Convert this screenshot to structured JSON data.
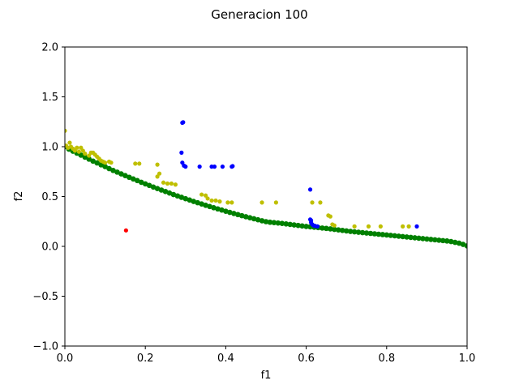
{
  "chart_data": {
    "type": "scatter",
    "title": "Generacion 100",
    "xlabel": "f1",
    "ylabel": "f2",
    "xlim": [
      0.0,
      1.0
    ],
    "ylim": [
      -1.0,
      2.0
    ],
    "xticks": [
      "0.0",
      "0.2",
      "0.4",
      "0.6",
      "0.8",
      "1.0"
    ],
    "yticks": [
      "−1.0",
      "−0.5",
      "0.0",
      "0.5",
      "1.0",
      "1.5",
      "2.0"
    ],
    "grid": false,
    "series": [
      {
        "color": "#008000",
        "points": [
          [
            0.0,
            1.0
          ],
          [
            0.01,
            0.975
          ],
          [
            0.02,
            0.955
          ],
          [
            0.03,
            0.935
          ],
          [
            0.04,
            0.915
          ],
          [
            0.05,
            0.895
          ],
          [
            0.06,
            0.875
          ],
          [
            0.07,
            0.855
          ],
          [
            0.08,
            0.837
          ],
          [
            0.09,
            0.818
          ],
          [
            0.1,
            0.8
          ],
          [
            0.11,
            0.78
          ],
          [
            0.12,
            0.762
          ],
          [
            0.13,
            0.745
          ],
          [
            0.14,
            0.727
          ],
          [
            0.15,
            0.71
          ],
          [
            0.16,
            0.693
          ],
          [
            0.17,
            0.676
          ],
          [
            0.18,
            0.66
          ],
          [
            0.19,
            0.643
          ],
          [
            0.2,
            0.627
          ],
          [
            0.21,
            0.611
          ],
          [
            0.22,
            0.595
          ],
          [
            0.23,
            0.58
          ],
          [
            0.24,
            0.565
          ],
          [
            0.25,
            0.55
          ],
          [
            0.26,
            0.535
          ],
          [
            0.27,
            0.52
          ],
          [
            0.28,
            0.506
          ],
          [
            0.29,
            0.492
          ],
          [
            0.3,
            0.478
          ],
          [
            0.31,
            0.465
          ],
          [
            0.32,
            0.451
          ],
          [
            0.33,
            0.438
          ],
          [
            0.34,
            0.425
          ],
          [
            0.35,
            0.412
          ],
          [
            0.36,
            0.4
          ],
          [
            0.37,
            0.388
          ],
          [
            0.38,
            0.376
          ],
          [
            0.39,
            0.364
          ],
          [
            0.4,
            0.352
          ],
          [
            0.41,
            0.341
          ],
          [
            0.42,
            0.33
          ],
          [
            0.43,
            0.319
          ],
          [
            0.44,
            0.308
          ],
          [
            0.45,
            0.297
          ],
          [
            0.46,
            0.287
          ],
          [
            0.47,
            0.277
          ],
          [
            0.48,
            0.267
          ],
          [
            0.49,
            0.257
          ],
          [
            0.5,
            0.248
          ],
          [
            0.51,
            0.242
          ],
          [
            0.52,
            0.238
          ],
          [
            0.53,
            0.234
          ],
          [
            0.54,
            0.23
          ],
          [
            0.55,
            0.225
          ],
          [
            0.56,
            0.22
          ],
          [
            0.57,
            0.215
          ],
          [
            0.58,
            0.21
          ],
          [
            0.59,
            0.205
          ],
          [
            0.6,
            0.2
          ],
          [
            0.61,
            0.196
          ],
          [
            0.62,
            0.192
          ],
          [
            0.63,
            0.188
          ],
          [
            0.64,
            0.184
          ],
          [
            0.65,
            0.18
          ],
          [
            0.66,
            0.175
          ],
          [
            0.67,
            0.17
          ],
          [
            0.68,
            0.165
          ],
          [
            0.69,
            0.16
          ],
          [
            0.7,
            0.155
          ],
          [
            0.71,
            0.15
          ],
          [
            0.72,
            0.146
          ],
          [
            0.73,
            0.142
          ],
          [
            0.74,
            0.138
          ],
          [
            0.75,
            0.134
          ],
          [
            0.76,
            0.13
          ],
          [
            0.77,
            0.126
          ],
          [
            0.78,
            0.122
          ],
          [
            0.79,
            0.118
          ],
          [
            0.8,
            0.114
          ],
          [
            0.81,
            0.11
          ],
          [
            0.82,
            0.106
          ],
          [
            0.83,
            0.102
          ],
          [
            0.84,
            0.098
          ],
          [
            0.85,
            0.094
          ],
          [
            0.86,
            0.09
          ],
          [
            0.87,
            0.086
          ],
          [
            0.88,
            0.082
          ],
          [
            0.89,
            0.078
          ],
          [
            0.9,
            0.074
          ],
          [
            0.91,
            0.07
          ],
          [
            0.92,
            0.066
          ],
          [
            0.93,
            0.062
          ],
          [
            0.94,
            0.058
          ],
          [
            0.95,
            0.054
          ],
          [
            0.96,
            0.048
          ],
          [
            0.97,
            0.04
          ],
          [
            0.98,
            0.032
          ],
          [
            0.99,
            0.02
          ],
          [
            1.0,
            0.005
          ]
        ]
      },
      {
        "color": "#bfbf00",
        "points": [
          [
            0.0,
            1.16
          ],
          [
            0.003,
            1.01
          ],
          [
            0.008,
            0.99
          ],
          [
            0.012,
            1.04
          ],
          [
            0.015,
            1.0
          ],
          [
            0.02,
            0.98
          ],
          [
            0.025,
            0.96
          ],
          [
            0.03,
            0.99
          ],
          [
            0.035,
            0.95
          ],
          [
            0.04,
            0.99
          ],
          [
            0.045,
            0.96
          ],
          [
            0.05,
            0.93
          ],
          [
            0.06,
            0.91
          ],
          [
            0.065,
            0.94
          ],
          [
            0.07,
            0.94
          ],
          [
            0.075,
            0.92
          ],
          [
            0.08,
            0.9
          ],
          [
            0.085,
            0.88
          ],
          [
            0.09,
            0.86
          ],
          [
            0.095,
            0.85
          ],
          [
            0.1,
            0.84
          ],
          [
            0.11,
            0.85
          ],
          [
            0.115,
            0.84
          ],
          [
            0.175,
            0.83
          ],
          [
            0.185,
            0.83
          ],
          [
            0.23,
            0.82
          ],
          [
            0.23,
            0.7
          ],
          [
            0.235,
            0.73
          ],
          [
            0.245,
            0.64
          ],
          [
            0.255,
            0.63
          ],
          [
            0.265,
            0.63
          ],
          [
            0.275,
            0.62
          ],
          [
            0.34,
            0.52
          ],
          [
            0.35,
            0.51
          ],
          [
            0.355,
            0.48
          ],
          [
            0.365,
            0.46
          ],
          [
            0.375,
            0.46
          ],
          [
            0.385,
            0.45
          ],
          [
            0.405,
            0.44
          ],
          [
            0.415,
            0.44
          ],
          [
            0.49,
            0.44
          ],
          [
            0.525,
            0.44
          ],
          [
            0.615,
            0.44
          ],
          [
            0.635,
            0.44
          ],
          [
            0.655,
            0.31
          ],
          [
            0.66,
            0.3
          ],
          [
            0.665,
            0.22
          ],
          [
            0.67,
            0.21
          ],
          [
            0.72,
            0.2
          ],
          [
            0.755,
            0.2
          ],
          [
            0.785,
            0.2
          ],
          [
            0.84,
            0.2
          ],
          [
            0.855,
            0.2
          ]
        ]
      },
      {
        "color": "#0000ff",
        "points": [
          [
            0.292,
            1.24
          ],
          [
            0.294,
            1.245
          ],
          [
            0.29,
            0.94
          ],
          [
            0.292,
            0.84
          ],
          [
            0.296,
            0.81
          ],
          [
            0.3,
            0.8
          ],
          [
            0.335,
            0.8
          ],
          [
            0.365,
            0.8
          ],
          [
            0.372,
            0.8
          ],
          [
            0.392,
            0.8
          ],
          [
            0.415,
            0.8
          ],
          [
            0.417,
            0.805
          ],
          [
            0.61,
            0.57
          ],
          [
            0.61,
            0.27
          ],
          [
            0.612,
            0.26
          ],
          [
            0.612,
            0.24
          ],
          [
            0.615,
            0.22
          ],
          [
            0.618,
            0.21
          ],
          [
            0.622,
            0.205
          ],
          [
            0.628,
            0.2
          ],
          [
            0.875,
            0.2
          ]
        ]
      },
      {
        "color": "#ff0000",
        "points": [
          [
            0.152,
            0.16
          ]
        ]
      }
    ]
  }
}
